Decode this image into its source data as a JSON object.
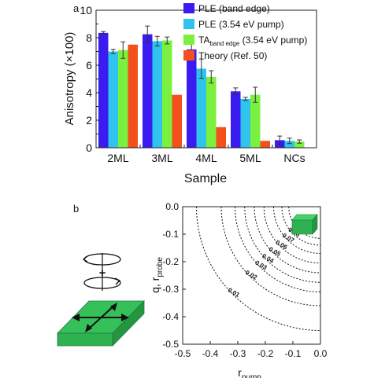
{
  "chart_data": [
    {
      "type": "bar",
      "panel_label": "a",
      "xlabel": "Sample",
      "ylabel": "Anisotropy (×100)",
      "ylim": [
        0,
        10
      ],
      "yticks": [
        "0",
        "2",
        "4",
        "6",
        "8",
        "10"
      ],
      "categories": [
        "2ML",
        "3ML",
        "4ML",
        "5ML",
        "NCs"
      ],
      "legend_position": "top-right",
      "series": [
        {
          "name": "PLE (band edge)",
          "color": "#3a1cf0",
          "values": [
            8.35,
            8.25,
            7.15,
            4.1,
            0.55
          ],
          "errors": [
            0.1,
            0.6,
            0.65,
            0.25,
            0.3
          ]
        },
        {
          "name": "PLE (3.54 eV pump)",
          "color": "#2ec4ee",
          "values": [
            7.0,
            7.75,
            5.75,
            3.55,
            0.5
          ],
          "errors": [
            0.15,
            0.35,
            0.7,
            0.12,
            0.2
          ]
        },
        {
          "name": "TA (3.54 eV pump)",
          "legend_main": "TA",
          "legend_sub": "band edge",
          "legend_tail": " (3.54 eV pump)",
          "color": "#7cf03e",
          "values": [
            7.1,
            7.8,
            5.15,
            3.85,
            0.45
          ],
          "errors": [
            0.6,
            0.25,
            0.45,
            0.55,
            0.12
          ]
        },
        {
          "name": "Theory (Ref. 50)",
          "color": "#f4501c",
          "values": [
            7.5,
            3.85,
            1.5,
            0.5,
            null
          ],
          "errors": [
            null,
            null,
            null,
            null,
            null
          ]
        }
      ]
    },
    {
      "type": "contour",
      "panel_label": "b",
      "xlabel_main": "r",
      "xlabel_sub": "pump",
      "ylabel_main": "q, r",
      "ylabel_sub": "probe",
      "xlim": [
        -0.5,
        0.0
      ],
      "ylim": [
        -0.5,
        0.0
      ],
      "xticks": [
        "-0.5",
        "-0.4",
        "-0.3",
        "-0.2",
        "-0.1",
        "0.0"
      ],
      "yticks": [
        "0.0",
        "-0.1",
        "-0.2",
        "-0.3",
        "-0.4",
        "-0.5"
      ],
      "level_labels": [
        "0.01",
        "0.02",
        "0.03",
        "0.04",
        "0.05",
        "0.06",
        "0.07",
        "0.08",
        "0.09"
      ],
      "radii": [
        0.45,
        0.36,
        0.31,
        0.275,
        0.24,
        0.205,
        0.17,
        0.14,
        0.115
      ]
    }
  ],
  "diagram": {
    "plus_sign": "+",
    "slab_color": "#2fb151",
    "cube_color": "#2fb151"
  }
}
